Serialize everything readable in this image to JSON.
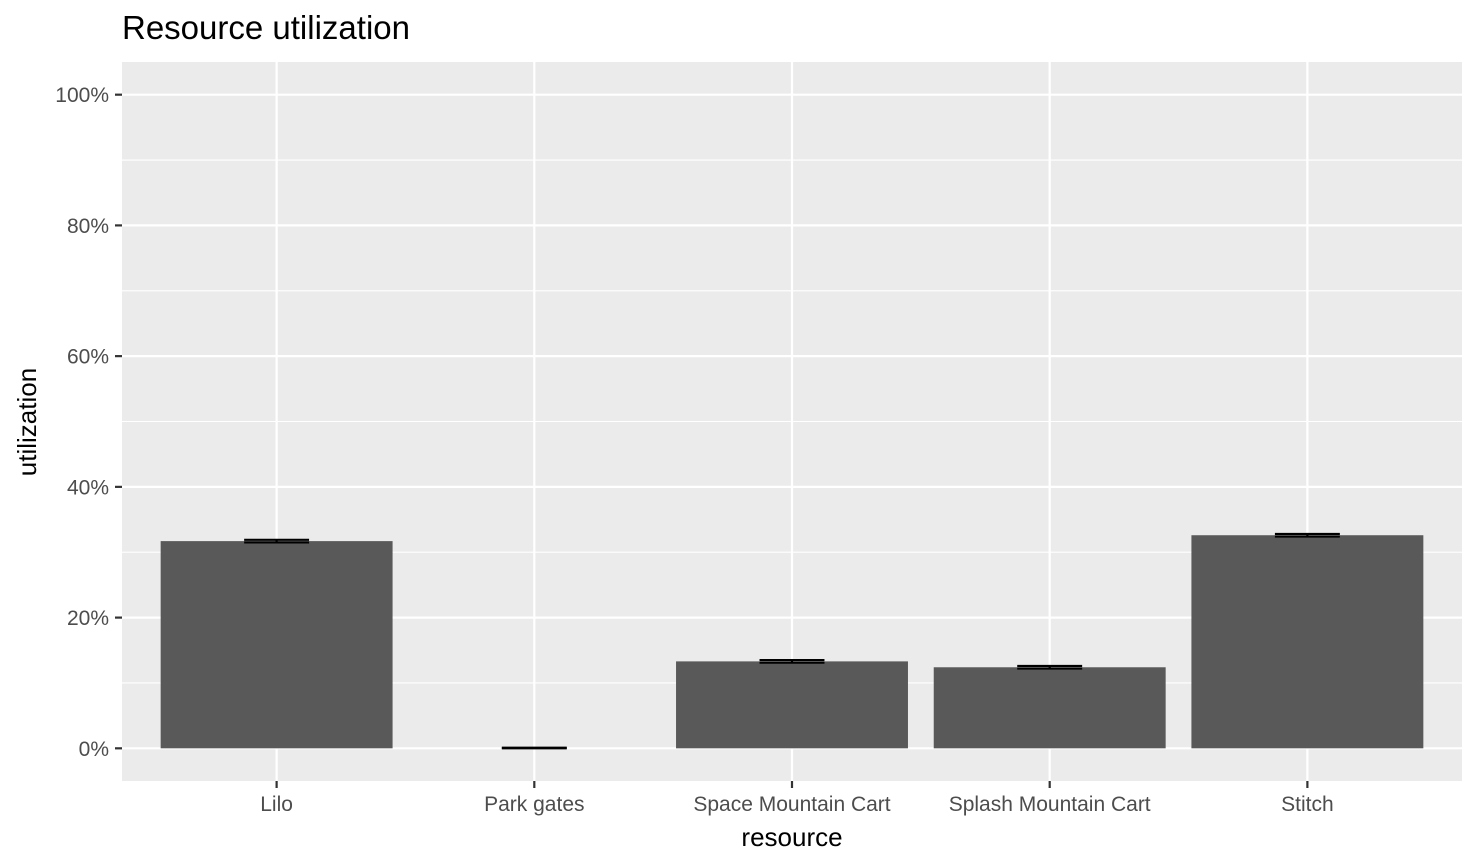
{
  "chart_data": {
    "type": "bar",
    "title": "Resource utilization",
    "xlabel": "resource",
    "ylabel": "utilization",
    "categories": [
      "Lilo",
      "Park gates",
      "Space Mountain Cart",
      "Splash Mountain Cart",
      "Stitch"
    ],
    "values": [
      31.7,
      0.0,
      13.3,
      12.4,
      32.6
    ],
    "error_upper": [
      31.9,
      0.1,
      13.5,
      12.6,
      32.8
    ],
    "error_lower": [
      31.5,
      0.0,
      13.1,
      12.2,
      32.4
    ],
    "ylim": [
      -5,
      105
    ],
    "yticks": [
      0,
      20,
      40,
      60,
      80,
      100
    ],
    "ytick_labels": [
      "0%",
      "20%",
      "40%",
      "60%",
      "80%",
      "100%"
    ],
    "y_unit": "%",
    "grid": true,
    "legend": "none",
    "colors": {
      "bar": "#595959",
      "panel": "#ebebeb",
      "grid": "#ffffff",
      "errorbar": "#000000",
      "tick": "#333333",
      "tick_label": "#4d4d4d"
    }
  }
}
